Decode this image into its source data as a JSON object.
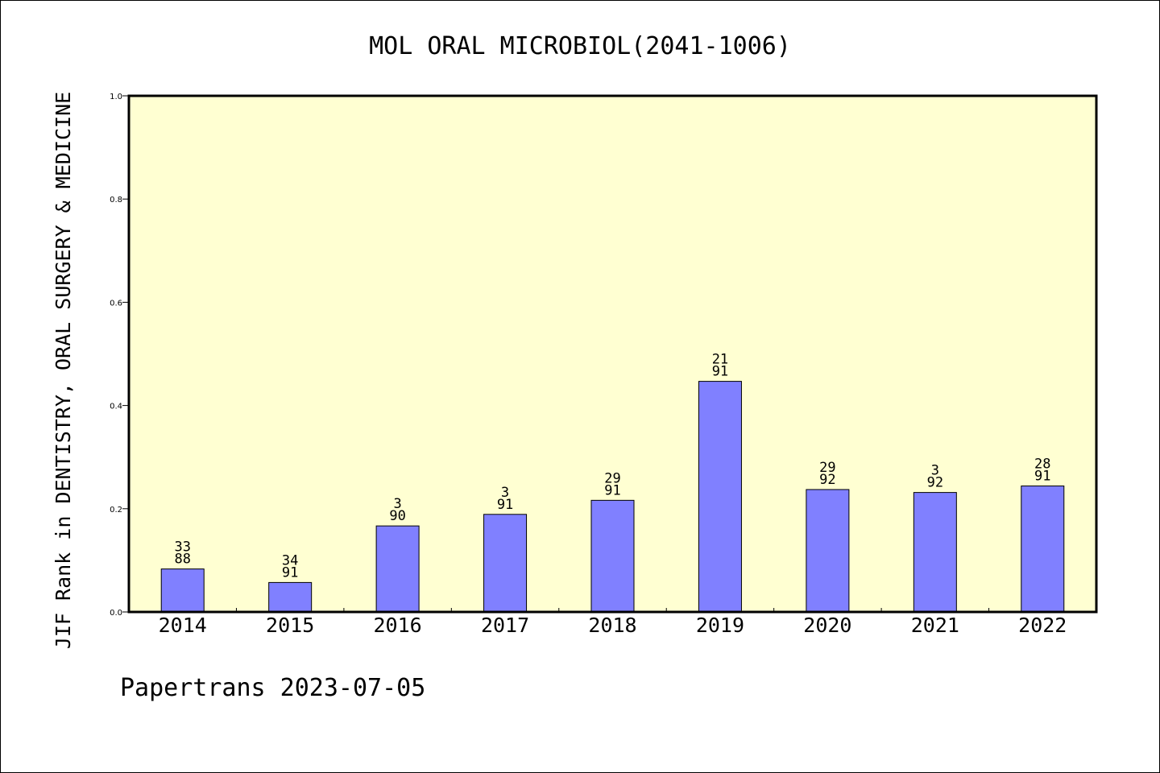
{
  "chart_data": {
    "type": "bar",
    "title": "MOL ORAL MICROBIOL(2041-1006)",
    "ylabel": "JIF Rank in DENTISTRY, ORAL SURGERY & MEDICINE",
    "xlabel": "",
    "ylim": [
      0,
      1.0
    ],
    "yticks": [
      "0.0",
      "0.2",
      "0.4",
      "0.6",
      "0.8",
      "1.0"
    ],
    "grid": false,
    "categories": [
      "2014",
      "2015",
      "2016",
      "2017",
      "2018",
      "2019",
      "2020",
      "2021",
      "2022"
    ],
    "values": [
      0.0833,
      0.0571,
      0.1667,
      0.1891,
      0.2163,
      0.4468,
      0.2372,
      0.2315,
      0.2441
    ],
    "bar_labels": [
      {
        "top": "33",
        "bottom": "88"
      },
      {
        "top": "34",
        "bottom": "91"
      },
      {
        "top": "3",
        "bottom": "90"
      },
      {
        "top": "3",
        "bottom": "91"
      },
      {
        "top": "29",
        "bottom": "91"
      },
      {
        "top": "21",
        "bottom": "91"
      },
      {
        "top": "29",
        "bottom": "92"
      },
      {
        "top": "3",
        "bottom": "92"
      },
      {
        "top": "28",
        "bottom": "91"
      }
    ],
    "colors": {
      "bar": "#8080ff",
      "plot_background": "#ffffd2"
    }
  },
  "footer": {
    "text": "Papertrans 2023-07-05"
  }
}
